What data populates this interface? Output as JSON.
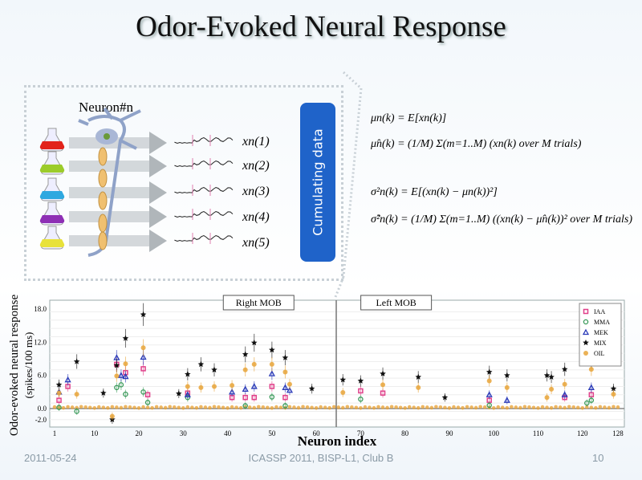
{
  "title": "Odor-Evoked Neural Response",
  "diagram": {
    "neuron_label": "Neuron#n",
    "traces": [
      "xn(1)",
      "xn(2)",
      "xn(3)",
      "xn(4)",
      "xn(5)"
    ],
    "flask_colors": [
      "#e2231a",
      "#9ccc2a",
      "#2fa8e0",
      "#8e2fb5",
      "#e8e23a"
    ],
    "cumulating_label": "Cumulating data",
    "equations": [
      "μn(k) = E[xn(k)]",
      "μ̂n(k) = (1/M) Σ(m=1..M) (xn(k) over M trials)",
      "σ²n(k) = E[(xn(k) − μn(k))²]",
      "σ̂²n(k) = (1/M) Σ(m=1..M) ((xn(k) − μ̂n(k))² over M trials)"
    ]
  },
  "chart_data": {
    "type": "scatter",
    "xlabel": "Neuron index",
    "ylabel": "Odor-evoked neural response (spikes/100 ms)",
    "xlim": [
      1,
      128
    ],
    "ylim": [
      -3,
      19.5
    ],
    "xticks": [
      "1",
      "10",
      "20",
      "30",
      "40",
      "50",
      "60",
      "70",
      "80",
      "90",
      "100",
      "110",
      "120",
      "128"
    ],
    "xtick_values": [
      1,
      10,
      20,
      30,
      40,
      50,
      60,
      70,
      80,
      90,
      100,
      110,
      120,
      128
    ],
    "yticks": [
      "18.0",
      "12.0",
      "6.0",
      "0.0",
      "-2.0"
    ],
    "ytick_values": [
      18,
      12,
      6,
      0,
      -2
    ],
    "regions": [
      {
        "label": "Right MOB"
      },
      {
        "label": "Left MOB"
      }
    ],
    "divider_x": 64.5,
    "legend_position": "top-right",
    "series": [
      {
        "name": "IAA",
        "color": "#e0408a",
        "marker": "square",
        "points": [
          [
            2,
            1.5
          ],
          [
            4,
            4
          ],
          [
            15,
            8
          ],
          [
            17,
            6.5
          ],
          [
            21,
            7.2
          ],
          [
            22,
            2.5
          ],
          [
            31,
            2.8
          ],
          [
            41,
            2
          ],
          [
            44,
            2
          ],
          [
            46,
            2
          ],
          [
            50,
            4
          ],
          [
            53,
            2
          ],
          [
            70,
            3.2
          ],
          [
            75,
            2.8
          ],
          [
            99,
            1.5
          ],
          [
            116,
            2
          ],
          [
            122,
            2.5
          ]
        ]
      },
      {
        "name": "MMA",
        "color": "#3a9a5a",
        "marker": "circle",
        "points": [
          [
            2,
            0.2
          ],
          [
            6,
            -0.5
          ],
          [
            15,
            3.8
          ],
          [
            16,
            4.3
          ],
          [
            17,
            2.6
          ],
          [
            21,
            3
          ],
          [
            22,
            1.1
          ],
          [
            31,
            2
          ],
          [
            44,
            0.5
          ],
          [
            50,
            2.1
          ],
          [
            53,
            0.5
          ],
          [
            70,
            1.7
          ],
          [
            99,
            0.6
          ],
          [
            121,
            1
          ],
          [
            122,
            1.5
          ]
        ]
      },
      {
        "name": "MEK",
        "color": "#2a3ab8",
        "marker": "triangle",
        "points": [
          [
            2,
            3
          ],
          [
            4,
            5.2
          ],
          [
            15,
            9.2
          ],
          [
            16,
            6
          ],
          [
            17,
            5.8
          ],
          [
            21,
            9.3
          ],
          [
            31,
            2.5
          ],
          [
            41,
            3
          ],
          [
            44,
            3.5
          ],
          [
            46,
            4
          ],
          [
            50,
            6.3
          ],
          [
            53,
            3.8
          ],
          [
            54,
            3.3
          ],
          [
            99,
            2.5
          ],
          [
            103,
            1.5
          ],
          [
            116,
            2.5
          ],
          [
            122,
            3.8
          ]
        ]
      },
      {
        "name": "MIX",
        "color": "#111111",
        "marker": "star",
        "points": [
          [
            2,
            4.3
          ],
          [
            6,
            8.5
          ],
          [
            12,
            2.8
          ],
          [
            14,
            -2
          ],
          [
            15,
            7.8
          ],
          [
            17,
            12.7
          ],
          [
            21,
            17
          ],
          [
            29,
            2.7
          ],
          [
            31,
            6.2
          ],
          [
            34,
            8
          ],
          [
            37,
            7
          ],
          [
            44,
            9.8
          ],
          [
            46,
            11.9
          ],
          [
            50,
            10.6
          ],
          [
            53,
            9.2
          ],
          [
            59,
            3.6
          ],
          [
            66,
            5.2
          ],
          [
            70,
            5
          ],
          [
            75,
            6.3
          ],
          [
            83,
            5.7
          ],
          [
            89,
            2
          ],
          [
            99,
            6.6
          ],
          [
            103,
            6
          ],
          [
            112,
            6
          ],
          [
            113,
            5.7
          ],
          [
            116,
            7.1
          ],
          [
            122,
            8.5
          ],
          [
            127,
            3.6
          ]
        ]
      },
      {
        "name": "OIL",
        "color": "#e8a43a",
        "marker": "diamond",
        "points": [
          [
            2,
            2.8
          ],
          [
            6,
            2.6
          ],
          [
            14,
            -1.4
          ],
          [
            15,
            5.9
          ],
          [
            17,
            8.1
          ],
          [
            21,
            11
          ],
          [
            31,
            4
          ],
          [
            34,
            3.8
          ],
          [
            37,
            4
          ],
          [
            41,
            4.2
          ],
          [
            44,
            7
          ],
          [
            46,
            8
          ],
          [
            50,
            8
          ],
          [
            53,
            6.6
          ],
          [
            54,
            4.4
          ],
          [
            66,
            2.9
          ],
          [
            75,
            4.3
          ],
          [
            83,
            3.8
          ],
          [
            99,
            5
          ],
          [
            103,
            3.8
          ],
          [
            112,
            2
          ],
          [
            113,
            3.5
          ],
          [
            116,
            4.4
          ],
          [
            122,
            7.1
          ],
          [
            127,
            2.6
          ]
        ]
      }
    ]
  },
  "footer": {
    "date": "2011-05-24",
    "center": "ICASSP 2011, BISP-L1, Club B",
    "page": "10"
  }
}
